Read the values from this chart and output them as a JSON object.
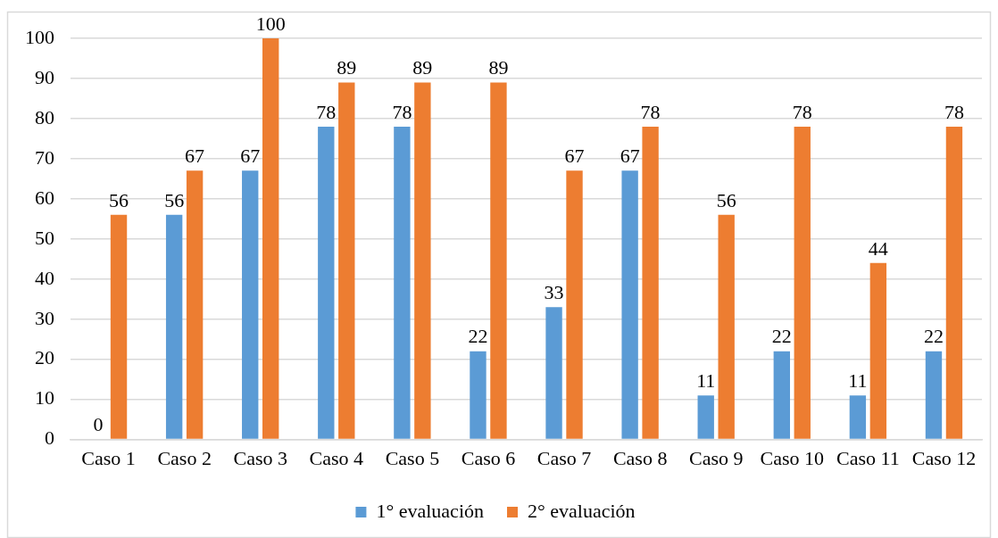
{
  "chart_data": {
    "type": "bar",
    "categories": [
      "Caso 1",
      "Caso 2",
      "Caso 3",
      "Caso 4",
      "Caso 5",
      "Caso 6",
      "Caso 7",
      "Caso 8",
      "Caso 9",
      "Caso 10",
      "Caso 11",
      "Caso 12"
    ],
    "series": [
      {
        "name": "1° evaluación",
        "color": "#5b9bd5",
        "values": [
          0,
          56,
          67,
          78,
          78,
          22,
          33,
          67,
          11,
          22,
          11,
          22
        ]
      },
      {
        "name": "2° evaluación",
        "color": "#ed7d31",
        "values": [
          56,
          67,
          100,
          89,
          89,
          89,
          67,
          78,
          56,
          78,
          44,
          78
        ]
      }
    ],
    "ylim": [
      0,
      100
    ],
    "yticks": [
      0,
      10,
      20,
      30,
      40,
      50,
      60,
      70,
      80,
      90,
      100
    ],
    "grid": "y",
    "legend": "bottom",
    "data_labels": true
  }
}
